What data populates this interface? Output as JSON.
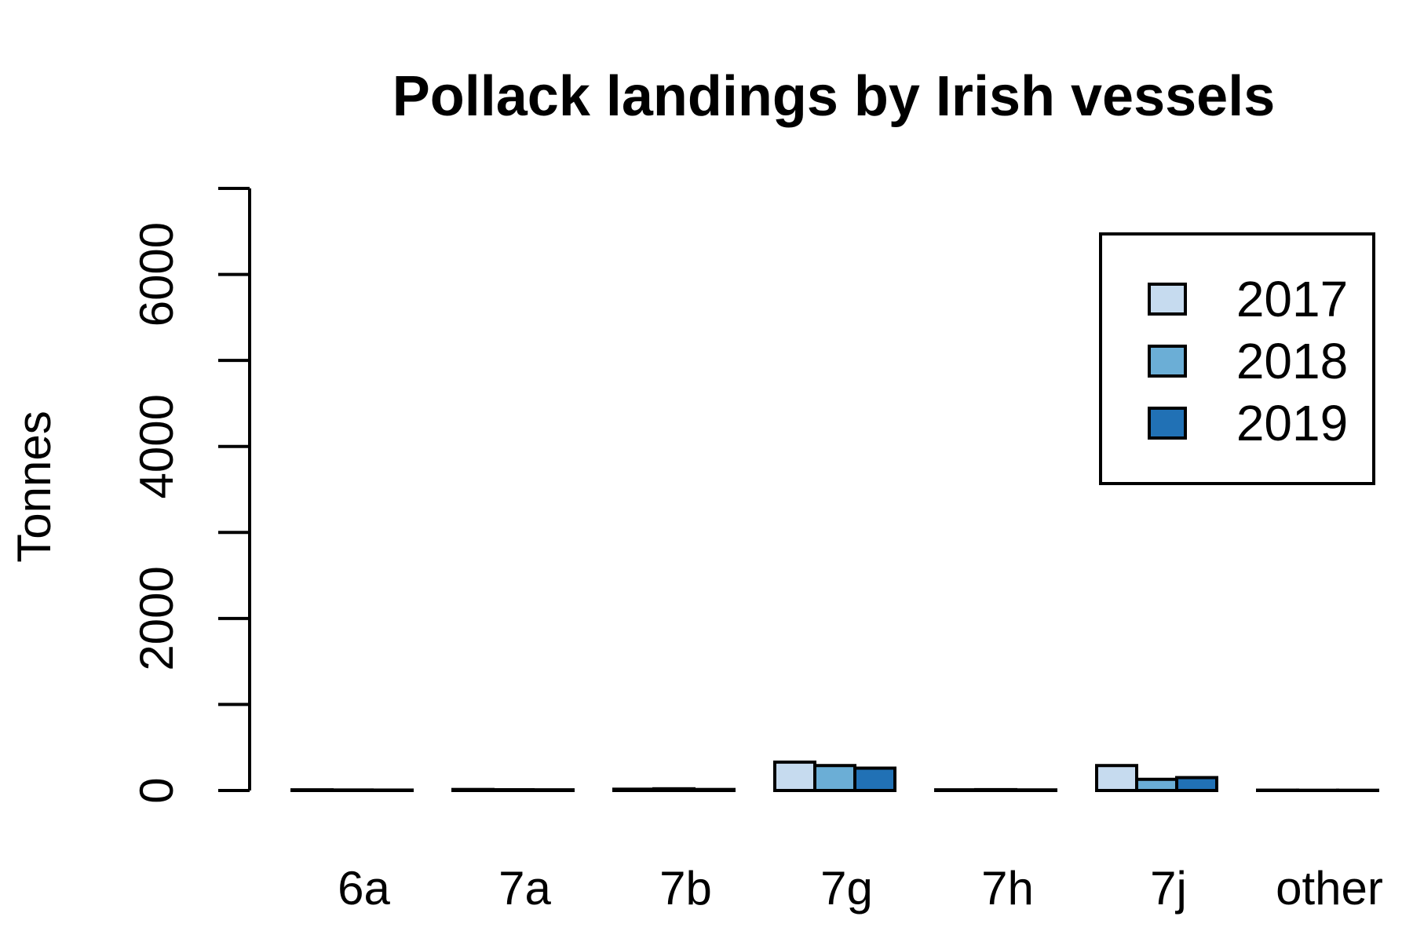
{
  "chart_data": {
    "type": "bar",
    "title": "Pollack landings by Irish vessels",
    "xlabel": "",
    "ylabel": "Tonnes",
    "categories": [
      "6a",
      "7a",
      "7b",
      "7g",
      "7h",
      "7j",
      "other"
    ],
    "series": [
      {
        "name": "2017",
        "color": "#c6dbef",
        "values": [
          8,
          12,
          15,
          330,
          8,
          290,
          4
        ]
      },
      {
        "name": "2018",
        "color": "#6baed6",
        "values": [
          6,
          9,
          20,
          290,
          10,
          130,
          3
        ]
      },
      {
        "name": "2019",
        "color": "#2171b5",
        "values": [
          5,
          8,
          12,
          260,
          7,
          150,
          3
        ]
      }
    ],
    "ylim": [
      0,
      7000
    ],
    "yticks": [
      0,
      1000,
      2000,
      3000,
      4000,
      5000,
      6000,
      7000
    ],
    "ytick_labels": [
      "0",
      "",
      "2000",
      "",
      "4000",
      "",
      "6000",
      ""
    ],
    "grid": false,
    "legend_position": "top-right"
  }
}
